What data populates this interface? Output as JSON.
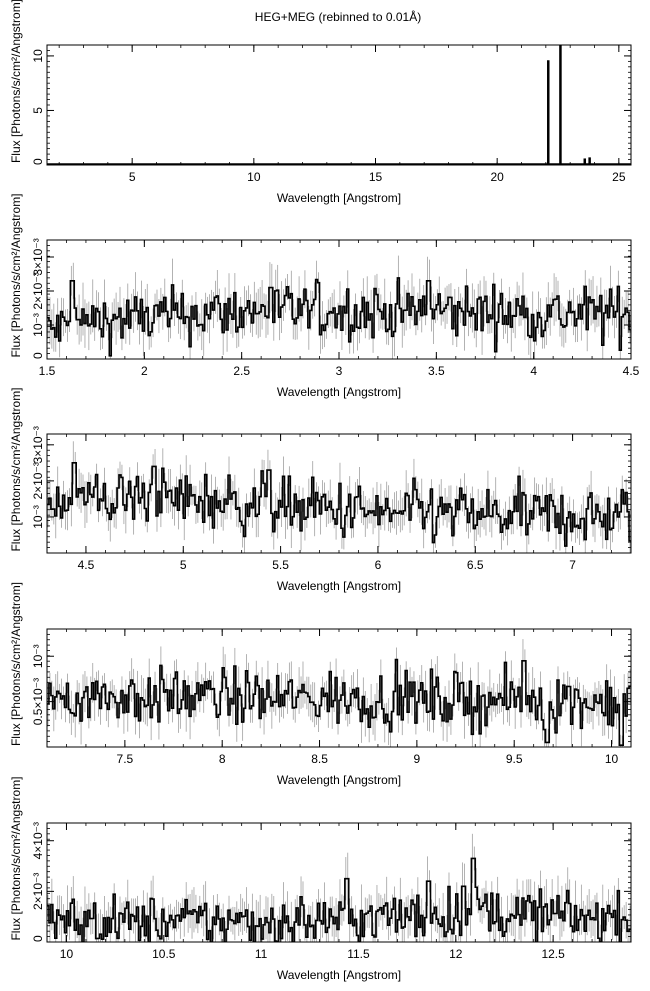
{
  "figure": {
    "title": "HEG+MEG (rebinned to 0.01Å)"
  },
  "chart_data": [
    {
      "type": "line",
      "xlabel": "Wavelength [Angstrom]",
      "ylabel": "Flux [Photons/s/cm²/Angstrom]",
      "xlim": [
        1.5,
        25.5
      ],
      "ylim": [
        0,
        11
      ],
      "xticks": [
        5,
        10,
        15,
        20,
        25
      ],
      "xtick_labels": [
        "5",
        "10",
        "15",
        "20",
        "25"
      ],
      "yticks": [
        0,
        5,
        10
      ],
      "ytick_labels": [
        "0",
        "5",
        "10"
      ],
      "baseline": 0.05,
      "lines": [
        {
          "x": 22.1,
          "y": 9.6
        },
        {
          "x": 22.6,
          "y": 11.0
        },
        {
          "x": 23.6,
          "y": 0.6
        },
        {
          "x": 23.8,
          "y": 0.7
        }
      ]
    },
    {
      "type": "line",
      "xlabel": "Wavelength [Angstrom]",
      "ylabel": "Flux [Photons/s/cm²/Angstrom]",
      "xlim": [
        1.5,
        4.5
      ],
      "ylim": [
        0,
        0.0035
      ],
      "xticks": [
        1.5,
        2,
        2.5,
        3,
        3.5,
        4,
        4.5
      ],
      "xtick_labels": [
        "1.5",
        "2",
        "2.5",
        "3",
        "3.5",
        "4",
        "4.5"
      ],
      "yticks": [
        0,
        0.001,
        0.002,
        0.003
      ],
      "ytick_labels": [
        "0",
        "10⁻³",
        "2×10⁻³",
        "3×10⁻³"
      ],
      "level": [
        [
          1.5,
          0.0008
        ],
        [
          1.7,
          0.0011
        ],
        [
          2.5,
          0.0014
        ],
        [
          3.5,
          0.0014
        ],
        [
          4.5,
          0.0013
        ]
      ],
      "scatter": 0.0004,
      "errscale": 0.0006,
      "spikes": [
        {
          "x": 1.63,
          "y": 0.0023
        },
        {
          "x": 3.46,
          "y": 0.0023
        },
        {
          "x": 2.65,
          "y": 0.0021
        }
      ]
    },
    {
      "type": "line",
      "xlabel": "Wavelength [Angstrom]",
      "ylabel": "Flux [Photons/s/cm²/Angstrom]",
      "xlim": [
        4.3,
        7.3
      ],
      "ylim": [
        0,
        0.0033
      ],
      "xticks": [
        4.5,
        5,
        5.5,
        6,
        6.5,
        7
      ],
      "xtick_labels": [
        "4.5",
        "5",
        "5.5",
        "6",
        "6.5",
        "7"
      ],
      "yticks": [
        0.001,
        0.002,
        0.003
      ],
      "ytick_labels": [
        "10⁻³",
        "2×10⁻³",
        "3×10⁻³"
      ],
      "level": [
        [
          4.3,
          0.0015
        ],
        [
          5.0,
          0.0015
        ],
        [
          5.5,
          0.0013
        ],
        [
          6.0,
          0.0011
        ],
        [
          7.3,
          0.001
        ]
      ],
      "scatter": 0.0004,
      "errscale": 0.0005,
      "spikes": [
        {
          "x": 4.44,
          "y": 0.0025
        },
        {
          "x": 4.85,
          "y": 0.0024
        },
        {
          "x": 5.44,
          "y": 0.0023
        }
      ]
    },
    {
      "type": "line",
      "xlabel": "Wavelength [Angstrom]",
      "ylabel": "Flux [Photons/s/cm²/Angstrom]",
      "xlim": [
        7.1,
        10.1
      ],
      "ylim": [
        0,
        0.0013
      ],
      "xticks": [
        7.5,
        8,
        8.5,
        9,
        9.5,
        10
      ],
      "xtick_labels": [
        "7.5",
        "8",
        "8.5",
        "9",
        "9.5",
        "10"
      ],
      "yticks": [
        0.0005,
        0.001
      ],
      "ytick_labels": [
        "0.5×10⁻³",
        "10⁻³"
      ],
      "level": [
        [
          7.1,
          0.00055
        ],
        [
          8.0,
          0.00055
        ],
        [
          9.0,
          0.00052
        ],
        [
          10.1,
          0.0005
        ]
      ],
      "scatter": 0.00015,
      "errscale": 0.0002,
      "spikes": [
        {
          "x": 9.55,
          "y": 0.00095
        },
        {
          "x": 9.67,
          "y": 5e-05
        },
        {
          "x": 10.05,
          "y": 2e-05
        }
      ]
    },
    {
      "type": "line",
      "xlabel": "Wavelength [Angstrom]",
      "ylabel": "Flux [Photons/s/cm²/Angstrom]",
      "xlim": [
        9.9,
        12.9
      ],
      "ylim": [
        0,
        0.0047
      ],
      "xticks": [
        10,
        10.5,
        11,
        11.5,
        12,
        12.5
      ],
      "xtick_labels": [
        "10",
        "10.5",
        "11",
        "11.5",
        "12",
        "12.5"
      ],
      "yticks": [
        0,
        0.002,
        0.004
      ],
      "ytick_labels": [
        "0",
        "2×10⁻³",
        "4×10⁻³"
      ],
      "level": [
        [
          9.9,
          0.0008
        ],
        [
          11.0,
          0.0008
        ],
        [
          11.8,
          0.001
        ],
        [
          12.1,
          0.0012
        ],
        [
          12.9,
          0.0009
        ]
      ],
      "scatter": 0.0005,
      "errscale": 0.0008,
      "spikes": [
        {
          "x": 12.09,
          "y": 0.0033
        },
        {
          "x": 11.44,
          "y": 0.0025
        },
        {
          "x": 11.86,
          "y": 0.0024
        },
        {
          "x": 12.04,
          "y": 0.0022
        }
      ]
    }
  ]
}
